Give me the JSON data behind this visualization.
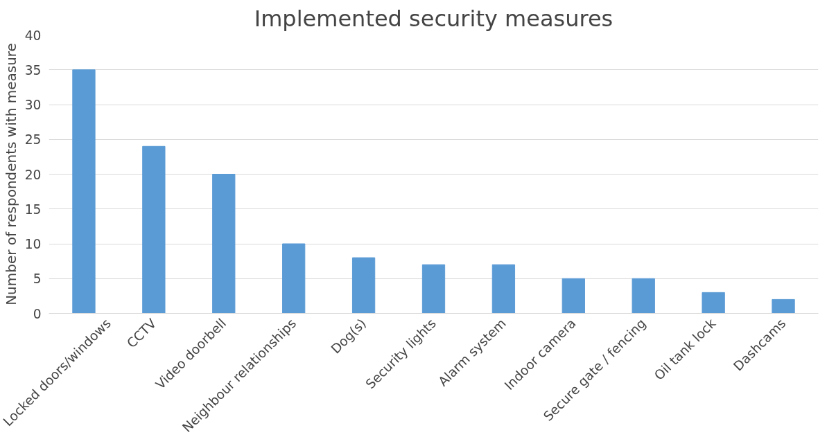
{
  "chart_data": {
    "type": "bar",
    "title": "Implemented security measures",
    "ylabel": "Number of respondents with measure",
    "categories": [
      "Locked doors/windows",
      "CCTV",
      "Video doorbell",
      "Neighbour relationships",
      "Dog(s)",
      "Security lights",
      "Alarm system",
      "Indoor camera",
      "Secure gate / fencing",
      "Oil tank lock",
      "Dashcams"
    ],
    "values": [
      35,
      24,
      20,
      10,
      8,
      7,
      7,
      5,
      5,
      3,
      2
    ],
    "color": "#5b9bd5",
    "ylim": [
      0,
      40
    ],
    "yticks": [
      0,
      5,
      10,
      15,
      20,
      25,
      30,
      35,
      40
    ],
    "grid": "y"
  }
}
